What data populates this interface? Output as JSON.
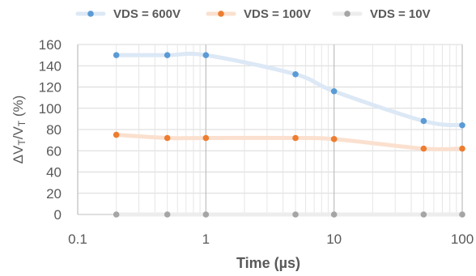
{
  "chart_data": {
    "type": "line",
    "xscale": "log",
    "xlabel": "Time (µs)",
    "ylabel_parts": [
      "ΔV",
      "T",
      "/V",
      "T",
      " (%)"
    ],
    "xlim": [
      0.1,
      100
    ],
    "ylim": [
      0,
      160
    ],
    "x_ticks": [
      0.1,
      1,
      10,
      100
    ],
    "x_tick_labels": [
      "0.1",
      "1",
      "10",
      "100"
    ],
    "y_ticks": [
      0,
      20,
      40,
      60,
      80,
      100,
      120,
      140,
      160
    ],
    "y_tick_labels": [
      "0",
      "20",
      "40",
      "60",
      "80",
      "100",
      "120",
      "140",
      "160"
    ],
    "grid": true,
    "legend_position": "top",
    "series": [
      {
        "name": "VDS = 600V",
        "marker_color": "#5B9BD5",
        "line_color": "#DCE8F5",
        "x": [
          0.2,
          0.5,
          1,
          5,
          10,
          50,
          100
        ],
        "y": [
          150,
          150,
          150,
          132,
          116,
          88,
          84
        ]
      },
      {
        "name": "VDS = 100V",
        "marker_color": "#ED7D31",
        "line_color": "#FBE0CF",
        "x": [
          0.2,
          0.5,
          1,
          5,
          10,
          50,
          100
        ],
        "y": [
          75,
          72,
          72,
          72,
          71,
          62,
          62
        ]
      },
      {
        "name": "VDS = 10V",
        "marker_color": "#A5A5A5",
        "line_color": "#EDEDED",
        "x": [
          0.2,
          0.5,
          1,
          5,
          10,
          50,
          100
        ],
        "y": [
          0,
          0,
          0,
          0,
          0,
          0,
          0
        ]
      }
    ]
  }
}
